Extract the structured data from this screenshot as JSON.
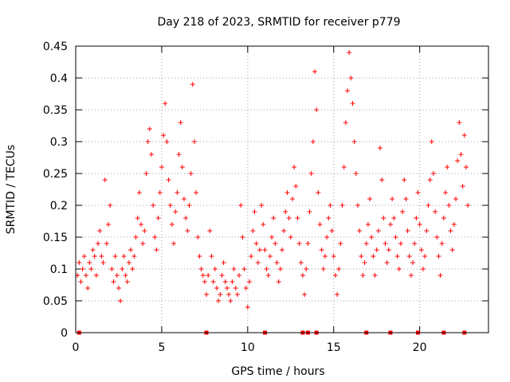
{
  "chart_data": {
    "type": "scatter",
    "title": "Day 218 of 2023, SRMTID for receiver p779",
    "xlabel": "GPS time / hours",
    "ylabel": "SRMTID / TECUs",
    "xlim": [
      0,
      24
    ],
    "ylim": [
      0,
      0.45
    ],
    "grid": true,
    "x_ticks": [
      0,
      5,
      10,
      15,
      20
    ],
    "x_tick_labels": [
      "0",
      "5",
      "10",
      "15",
      "20"
    ],
    "y_ticks": [
      0,
      0.05,
      0.1,
      0.15,
      0.2,
      0.25,
      0.3,
      0.35,
      0.4,
      0.45
    ],
    "y_tick_labels": [
      "0",
      "0.05",
      "0.1",
      "0.15",
      "0.2",
      "0.25",
      "0.3",
      "0.35",
      "0.4",
      "0.45"
    ],
    "marker": "plus",
    "color": "#ff0000",
    "series": [
      {
        "name": "SRMTID",
        "points": [
          [
            0.1,
            0.09
          ],
          [
            0.2,
            0.11
          ],
          [
            0.3,
            0.08
          ],
          [
            0.4,
            0.1
          ],
          [
            0.5,
            0.12
          ],
          [
            0.6,
            0.09
          ],
          [
            0.7,
            0.07
          ],
          [
            0.8,
            0.11
          ],
          [
            0.9,
            0.1
          ],
          [
            1.0,
            0.13
          ],
          [
            1.1,
            0.12
          ],
          [
            1.2,
            0.09
          ],
          [
            1.3,
            0.14
          ],
          [
            1.4,
            0.16
          ],
          [
            1.5,
            0.12
          ],
          [
            1.6,
            0.11
          ],
          [
            1.7,
            0.24
          ],
          [
            1.8,
            0.14
          ],
          [
            1.9,
            0.17
          ],
          [
            2.0,
            0.2
          ],
          [
            2.1,
            0.1
          ],
          [
            2.2,
            0.08
          ],
          [
            2.3,
            0.12
          ],
          [
            2.4,
            0.09
          ],
          [
            2.5,
            0.07
          ],
          [
            2.6,
            0.05
          ],
          [
            2.7,
            0.1
          ],
          [
            2.8,
            0.12
          ],
          [
            2.9,
            0.09
          ],
          [
            3.0,
            0.08
          ],
          [
            3.1,
            0.11
          ],
          [
            3.2,
            0.13
          ],
          [
            3.3,
            0.1
          ],
          [
            3.4,
            0.12
          ],
          [
            3.5,
            0.15
          ],
          [
            3.6,
            0.18
          ],
          [
            3.7,
            0.22
          ],
          [
            3.8,
            0.17
          ],
          [
            3.9,
            0.14
          ],
          [
            4.0,
            0.16
          ],
          [
            4.1,
            0.25
          ],
          [
            4.2,
            0.3
          ],
          [
            4.3,
            0.32
          ],
          [
            4.4,
            0.28
          ],
          [
            4.5,
            0.2
          ],
          [
            4.6,
            0.15
          ],
          [
            4.7,
            0.13
          ],
          [
            4.8,
            0.18
          ],
          [
            4.9,
            0.22
          ],
          [
            5.0,
            0.26
          ],
          [
            5.1,
            0.31
          ],
          [
            5.2,
            0.36
          ],
          [
            5.3,
            0.3
          ],
          [
            5.4,
            0.24
          ],
          [
            5.5,
            0.2
          ],
          [
            5.6,
            0.17
          ],
          [
            5.7,
            0.14
          ],
          [
            5.8,
            0.19
          ],
          [
            5.9,
            0.22
          ],
          [
            6.0,
            0.28
          ],
          [
            6.1,
            0.33
          ],
          [
            6.2,
            0.26
          ],
          [
            6.3,
            0.21
          ],
          [
            6.4,
            0.18
          ],
          [
            6.5,
            0.16
          ],
          [
            6.6,
            0.2
          ],
          [
            6.7,
            0.25
          ],
          [
            6.8,
            0.39
          ],
          [
            6.9,
            0.3
          ],
          [
            7.0,
            0.22
          ],
          [
            7.1,
            0.15
          ],
          [
            7.2,
            0.12
          ],
          [
            7.3,
            0.1
          ],
          [
            7.4,
            0.09
          ],
          [
            7.5,
            0.08
          ],
          [
            7.6,
            0.06
          ],
          [
            7.7,
            0.09
          ],
          [
            7.8,
            0.16
          ],
          [
            7.9,
            0.12
          ],
          [
            8.0,
            0.08
          ],
          [
            8.1,
            0.1
          ],
          [
            8.2,
            0.07
          ],
          [
            8.3,
            0.05
          ],
          [
            8.4,
            0.06
          ],
          [
            8.5,
            0.09
          ],
          [
            8.6,
            0.11
          ],
          [
            8.7,
            0.08
          ],
          [
            8.8,
            0.07
          ],
          [
            8.9,
            0.06
          ],
          [
            9.0,
            0.05
          ],
          [
            9.1,
            0.08
          ],
          [
            9.2,
            0.1
          ],
          [
            9.3,
            0.07
          ],
          [
            9.4,
            0.06
          ],
          [
            9.5,
            0.09
          ],
          [
            9.6,
            0.2
          ],
          [
            9.7,
            0.15
          ],
          [
            9.8,
            0.1
          ],
          [
            9.9,
            0.07
          ],
          [
            10.0,
            0.04
          ],
          [
            10.1,
            0.08
          ],
          [
            10.2,
            0.12
          ],
          [
            10.3,
            0.16
          ],
          [
            10.4,
            0.19
          ],
          [
            10.5,
            0.14
          ],
          [
            10.6,
            0.11
          ],
          [
            10.7,
            0.13
          ],
          [
            10.8,
            0.2
          ],
          [
            10.9,
            0.17
          ],
          [
            11.0,
            0.13
          ],
          [
            11.1,
            0.1
          ],
          [
            11.2,
            0.09
          ],
          [
            11.3,
            0.12
          ],
          [
            11.4,
            0.15
          ],
          [
            11.5,
            0.18
          ],
          [
            11.6,
            0.14
          ],
          [
            11.7,
            0.11
          ],
          [
            11.8,
            0.08
          ],
          [
            11.9,
            0.1
          ],
          [
            12.0,
            0.13
          ],
          [
            12.1,
            0.16
          ],
          [
            12.2,
            0.19
          ],
          [
            12.3,
            0.22
          ],
          [
            12.4,
            0.18
          ],
          [
            12.5,
            0.15
          ],
          [
            12.6,
            0.21
          ],
          [
            12.7,
            0.26
          ],
          [
            12.8,
            0.23
          ],
          [
            12.9,
            0.18
          ],
          [
            13.0,
            0.14
          ],
          [
            13.1,
            0.11
          ],
          [
            13.2,
            0.09
          ],
          [
            13.3,
            0.06
          ],
          [
            13.4,
            0.1
          ],
          [
            13.5,
            0.14
          ],
          [
            13.6,
            0.19
          ],
          [
            13.7,
            0.25
          ],
          [
            13.8,
            0.3
          ],
          [
            13.9,
            0.41
          ],
          [
            14.0,
            0.35
          ],
          [
            14.1,
            0.22
          ],
          [
            14.2,
            0.17
          ],
          [
            14.3,
            0.13
          ],
          [
            14.4,
            0.1
          ],
          [
            14.5,
            0.12
          ],
          [
            14.6,
            0.15
          ],
          [
            14.7,
            0.18
          ],
          [
            14.8,
            0.2
          ],
          [
            14.9,
            0.16
          ],
          [
            15.0,
            0.12
          ],
          [
            15.1,
            0.09
          ],
          [
            15.2,
            0.06
          ],
          [
            15.3,
            0.1
          ],
          [
            15.4,
            0.14
          ],
          [
            15.5,
            0.2
          ],
          [
            15.6,
            0.26
          ],
          [
            15.7,
            0.33
          ],
          [
            15.8,
            0.38
          ],
          [
            15.9,
            0.44
          ],
          [
            16.0,
            0.4
          ],
          [
            16.1,
            0.36
          ],
          [
            16.2,
            0.3
          ],
          [
            16.3,
            0.25
          ],
          [
            16.4,
            0.2
          ],
          [
            16.5,
            0.16
          ],
          [
            16.6,
            0.12
          ],
          [
            16.7,
            0.09
          ],
          [
            16.8,
            0.11
          ],
          [
            16.9,
            0.14
          ],
          [
            17.0,
            0.17
          ],
          [
            17.1,
            0.21
          ],
          [
            17.2,
            0.15
          ],
          [
            17.3,
            0.12
          ],
          [
            17.4,
            0.09
          ],
          [
            17.5,
            0.13
          ],
          [
            17.6,
            0.16
          ],
          [
            17.7,
            0.29
          ],
          [
            17.8,
            0.24
          ],
          [
            17.9,
            0.18
          ],
          [
            18.0,
            0.14
          ],
          [
            18.1,
            0.11
          ],
          [
            18.2,
            0.13
          ],
          [
            18.3,
            0.17
          ],
          [
            18.4,
            0.21
          ],
          [
            18.5,
            0.18
          ],
          [
            18.6,
            0.15
          ],
          [
            18.7,
            0.12
          ],
          [
            18.8,
            0.1
          ],
          [
            18.9,
            0.14
          ],
          [
            19.0,
            0.19
          ],
          [
            19.1,
            0.24
          ],
          [
            19.2,
            0.21
          ],
          [
            19.3,
            0.16
          ],
          [
            19.4,
            0.12
          ],
          [
            19.5,
            0.09
          ],
          [
            19.6,
            0.11
          ],
          [
            19.7,
            0.14
          ],
          [
            19.8,
            0.18
          ],
          [
            19.9,
            0.22
          ],
          [
            20.0,
            0.17
          ],
          [
            20.1,
            0.13
          ],
          [
            20.2,
            0.1
          ],
          [
            20.3,
            0.12
          ],
          [
            20.4,
            0.16
          ],
          [
            20.5,
            0.2
          ],
          [
            20.6,
            0.24
          ],
          [
            20.7,
            0.3
          ],
          [
            20.8,
            0.25
          ],
          [
            20.9,
            0.19
          ],
          [
            21.0,
            0.15
          ],
          [
            21.1,
            0.12
          ],
          [
            21.2,
            0.09
          ],
          [
            21.3,
            0.14
          ],
          [
            21.4,
            0.18
          ],
          [
            21.5,
            0.22
          ],
          [
            21.6,
            0.26
          ],
          [
            21.7,
            0.2
          ],
          [
            21.8,
            0.16
          ],
          [
            21.9,
            0.13
          ],
          [
            22.0,
            0.17
          ],
          [
            22.1,
            0.21
          ],
          [
            22.2,
            0.27
          ],
          [
            22.3,
            0.33
          ],
          [
            22.4,
            0.28
          ],
          [
            22.5,
            0.23
          ],
          [
            22.6,
            0.31
          ],
          [
            22.7,
            0.26
          ],
          [
            22.8,
            0.2
          ]
        ]
      }
    ],
    "zero_markers_x": [
      0.2,
      7.6,
      11.0,
      13.2,
      13.5,
      14.0,
      16.9,
      18.3,
      19.9,
      21.4,
      22.6
    ]
  }
}
